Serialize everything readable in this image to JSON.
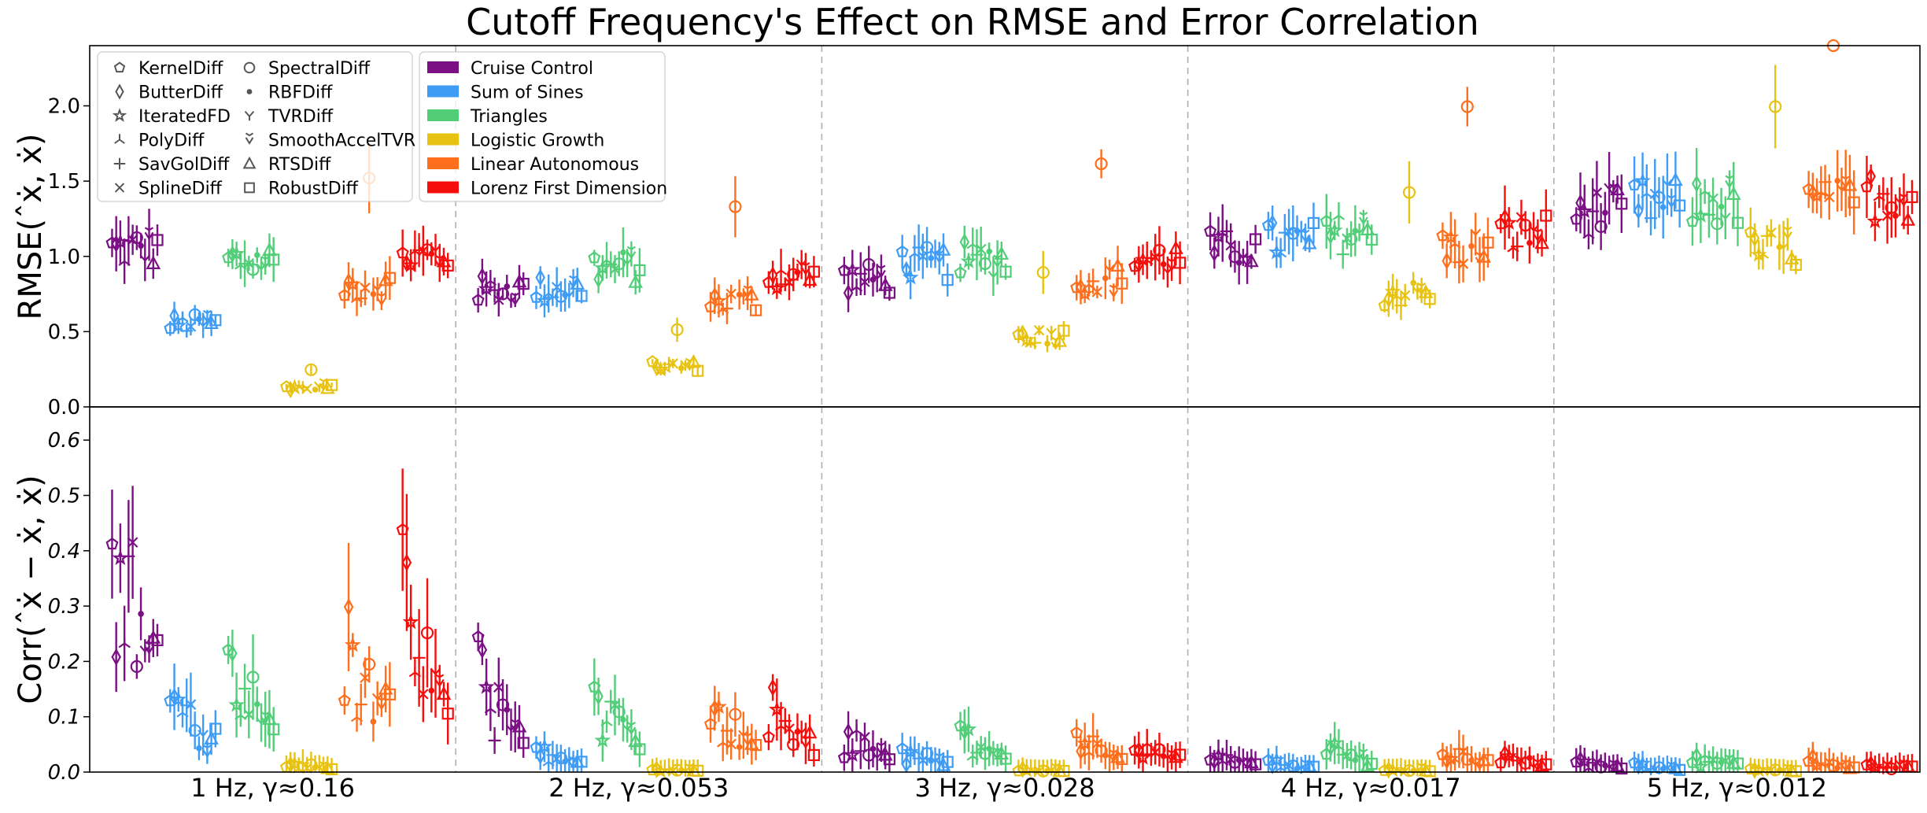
{
  "chart_data": {
    "type": "scatter",
    "title": "Cutoff Frequency's Effect on RMSE and Error Correlation",
    "groups": [
      "1 Hz, γ≈0.16",
      "2 Hz, γ≈0.053",
      "3 Hz, γ≈0.028",
      "4 Hz, γ≈0.017",
      "5 Hz, γ≈0.012"
    ],
    "methods": [
      "KernelDiff",
      "ButterDiff",
      "IteratedFD",
      "PolyDiff",
      "SavGolDiff",
      "SplineDiff",
      "SpectralDiff",
      "RBFDiff",
      "TVRDiff",
      "SmoothAccelTVR",
      "RTSDiff",
      "RobustDiff"
    ],
    "method_markers": [
      "pentagon",
      "thin-diamond",
      "star",
      "tri-down",
      "plus",
      "x",
      "circle",
      "dot",
      "y-shape",
      "v-hat",
      "triangle",
      "square"
    ],
    "signals": [
      {
        "name": "Cruise Control",
        "color": "#7b0f84"
      },
      {
        "name": "Sum of Sines",
        "color": "#3f9cf5"
      },
      {
        "name": "Triangles",
        "color": "#52cd78"
      },
      {
        "name": "Logistic Growth",
        "color": "#e8c210"
      },
      {
        "name": "Linear Autonomous",
        "color": "#fd6f1c"
      },
      {
        "name": "Lorenz First Dimension",
        "color": "#f50f0c"
      }
    ],
    "panels": [
      {
        "ylabel": "RMSE(ˆẋ, ẋ)",
        "ylim": [
          0,
          2.4
        ],
        "yticks": [
          "0.0",
          "0.5",
          "1.0",
          "1.5",
          "2.0"
        ],
        "ytick_values": [
          0,
          0.5,
          1.0,
          1.5,
          2.0
        ],
        "mean_by_group_signal": [
          [
            1.05,
            0.55,
            0.97,
            0.13,
            0.8,
            1.0
          ],
          [
            0.78,
            0.78,
            0.93,
            0.27,
            0.7,
            0.88
          ],
          [
            0.85,
            0.95,
            0.98,
            0.47,
            0.85,
            0.98
          ],
          [
            1.05,
            1.1,
            1.15,
            0.75,
            1.05,
            1.15
          ],
          [
            1.3,
            1.35,
            1.35,
            1.05,
            1.35,
            1.4
          ]
        ]
      },
      {
        "ylabel": "Corr(ˆẋ − ẋ, ẋ)",
        "ylim": [
          0,
          0.66
        ],
        "yticks": [
          "0.0",
          "0.1",
          "0.2",
          "0.3",
          "0.4",
          "0.5",
          "0.6"
        ],
        "ytick_values": [
          0,
          0.1,
          0.2,
          0.3,
          0.4,
          0.5,
          0.6
        ],
        "mean_by_group_signal": [
          [
            0.3,
            0.1,
            0.15,
            0.01,
            0.18,
            0.2
          ],
          [
            0.12,
            0.025,
            0.09,
            0.003,
            0.08,
            0.08
          ],
          [
            0.05,
            0.025,
            0.05,
            0.003,
            0.04,
            0.04
          ],
          [
            0.02,
            0.012,
            0.03,
            0.003,
            0.03,
            0.02
          ],
          [
            0.012,
            0.008,
            0.02,
            0.003,
            0.015,
            0.012
          ]
        ]
      }
    ]
  }
}
